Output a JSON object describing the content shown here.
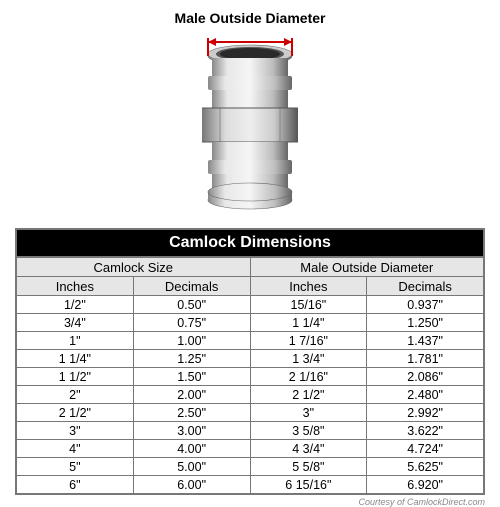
{
  "diagram": {
    "label": "Male Outside Diameter",
    "arrow_color": "#cc0000",
    "metal_light": "#e8e8e8",
    "metal_mid": "#bdbdbd",
    "metal_dark": "#888888",
    "metal_shadow": "#555555"
  },
  "table": {
    "title": "Camlock Dimensions",
    "group_headers": [
      "Camlock Size",
      "Male Outside Diameter"
    ],
    "col_headers": [
      "Inches",
      "Decimals",
      "Inches",
      "Decimals"
    ],
    "header_bg": "#e6e6e6",
    "border_color": "#777777",
    "title_bg": "#000000",
    "title_color": "#ffffff",
    "font_size": 12.5,
    "rows": [
      [
        "1/2\"",
        "0.50\"",
        "15/16\"",
        "0.937\""
      ],
      [
        "3/4\"",
        "0.75\"",
        "1 1/4\"",
        "1.250\""
      ],
      [
        "1\"",
        "1.00\"",
        "1 7/16\"",
        "1.437\""
      ],
      [
        "1 1/4\"",
        "1.25\"",
        "1 3/4\"",
        "1.781\""
      ],
      [
        "1 1/2\"",
        "1.50\"",
        "2 1/16\"",
        "2.086\""
      ],
      [
        "2\"",
        "2.00\"",
        "2 1/2\"",
        "2.480\""
      ],
      [
        "2 1/2\"",
        "2.50\"",
        "3\"",
        "2.992\""
      ],
      [
        "3\"",
        "3.00\"",
        "3 5/8\"",
        "3.622\""
      ],
      [
        "4\"",
        "4.00\"",
        "4 3/4\"",
        "4.724\""
      ],
      [
        "5\"",
        "5.00\"",
        "5 5/8\"",
        "5.625\""
      ],
      [
        "6\"",
        "6.00\"",
        "6 15/16\"",
        "6.920\""
      ]
    ]
  },
  "credit": "Courtesy of CamlockDirect.com"
}
